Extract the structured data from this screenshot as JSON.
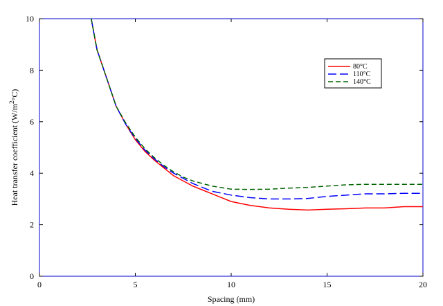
{
  "chart_data": {
    "type": "line",
    "xlabel": "Spacing (mm)",
    "ylabel_parts": [
      "Heat transfer coefficient (W/m",
      "2",
      "°C)"
    ],
    "xlim": [
      0,
      20
    ],
    "ylim": [
      0,
      10
    ],
    "x_ticks": [
      "0",
      "5",
      "10",
      "15",
      "20"
    ],
    "y_ticks": [
      "0",
      "2",
      "4",
      "6",
      "8",
      "10"
    ],
    "grid": false,
    "legend_position": "top-right",
    "series": [
      {
        "name": "80°C",
        "color": "#ff0000",
        "dash": "solid",
        "points": [
          [
            2.7,
            10.0
          ],
          [
            3,
            8.8
          ],
          [
            3.5,
            7.7
          ],
          [
            4,
            6.6
          ],
          [
            4.5,
            5.9
          ],
          [
            5,
            5.3
          ],
          [
            5.5,
            4.85
          ],
          [
            6,
            4.5
          ],
          [
            6.5,
            4.2
          ],
          [
            7,
            3.9
          ],
          [
            7.5,
            3.7
          ],
          [
            8,
            3.5
          ],
          [
            8.5,
            3.35
          ],
          [
            9,
            3.2
          ],
          [
            9.5,
            3.05
          ],
          [
            10,
            2.9
          ],
          [
            11,
            2.75
          ],
          [
            12,
            2.65
          ],
          [
            13,
            2.6
          ],
          [
            14,
            2.57
          ],
          [
            15,
            2.6
          ],
          [
            16,
            2.62
          ],
          [
            17,
            2.65
          ],
          [
            18,
            2.65
          ],
          [
            19,
            2.7
          ],
          [
            20,
            2.7
          ]
        ]
      },
      {
        "name": "110°C",
        "color": "#0000ff",
        "dash": "long-dash",
        "points": [
          [
            2.7,
            10.0
          ],
          [
            3,
            8.8
          ],
          [
            3.5,
            7.7
          ],
          [
            4,
            6.6
          ],
          [
            4.5,
            5.9
          ],
          [
            5,
            5.35
          ],
          [
            5.5,
            4.9
          ],
          [
            6,
            4.55
          ],
          [
            6.5,
            4.25
          ],
          [
            7,
            4.0
          ],
          [
            7.5,
            3.8
          ],
          [
            8,
            3.6
          ],
          [
            8.5,
            3.45
          ],
          [
            9,
            3.3
          ],
          [
            10,
            3.15
          ],
          [
            11,
            3.05
          ],
          [
            12,
            3.0
          ],
          [
            13,
            3.0
          ],
          [
            14,
            3.02
          ],
          [
            15,
            3.1
          ],
          [
            16,
            3.15
          ],
          [
            17,
            3.2
          ],
          [
            18,
            3.2
          ],
          [
            19,
            3.22
          ],
          [
            20,
            3.22
          ]
        ]
      },
      {
        "name": "140°C",
        "color": "#006400",
        "dash": "dash",
        "points": [
          [
            2.7,
            10.0
          ],
          [
            3,
            8.8
          ],
          [
            3.5,
            7.7
          ],
          [
            4,
            6.6
          ],
          [
            4.5,
            5.95
          ],
          [
            5,
            5.4
          ],
          [
            5.5,
            4.95
          ],
          [
            6,
            4.6
          ],
          [
            6.5,
            4.3
          ],
          [
            7,
            4.05
          ],
          [
            7.5,
            3.85
          ],
          [
            8,
            3.7
          ],
          [
            8.5,
            3.6
          ],
          [
            9,
            3.5
          ],
          [
            10,
            3.38
          ],
          [
            11,
            3.37
          ],
          [
            12,
            3.38
          ],
          [
            13,
            3.42
          ],
          [
            14,
            3.45
          ],
          [
            15,
            3.5
          ],
          [
            16,
            3.55
          ],
          [
            17,
            3.57
          ],
          [
            18,
            3.57
          ],
          [
            19,
            3.57
          ],
          [
            20,
            3.57
          ]
        ]
      }
    ]
  }
}
